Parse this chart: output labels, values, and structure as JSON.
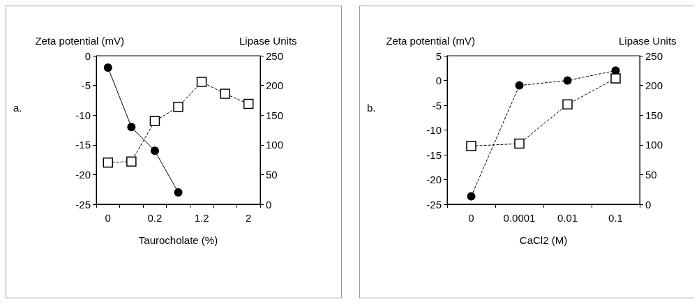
{
  "chart_data": [
    {
      "type": "line",
      "ylabel": "Zeta potential (mV)",
      "y2label": "Lipase Units",
      "xlabel": "Taurocholate (%)",
      "annotations": [
        "a."
      ],
      "categories": [
        "0",
        null,
        "0.2",
        null,
        "1.2",
        null,
        "2"
      ],
      "series": [
        {
          "color": "#000000",
          "marker": "circle",
          "line_style": "solid",
          "values": [
            -2,
            -12,
            -16,
            -23,
            null,
            null,
            null
          ]
        },
        {
          "color": "#000000",
          "marker": "square",
          "line_style": "dashed",
          "axis": "y2",
          "values": [
            70,
            72,
            140,
            164,
            206,
            186,
            169
          ]
        }
      ],
      "ylim": [
        -25,
        0
      ],
      "yticks": [
        -25,
        -20,
        -15,
        -10,
        -5,
        0
      ],
      "y2lim": [
        0,
        250
      ],
      "y2ticks": [
        0,
        50,
        100,
        150,
        200,
        250
      ],
      "grid": false
    },
    {
      "type": "line",
      "ylabel": "Zeta potential (mV)",
      "y2label": "Lipase Units",
      "xlabel": "CaCl2 (M)",
      "annotations": [
        "b."
      ],
      "categories": [
        "0",
        "0.0001",
        "0.01",
        "0.1"
      ],
      "series": [
        {
          "color": "#000000",
          "marker": "circle",
          "line_style": "dashed",
          "values": [
            -23.4,
            -1,
            0,
            2
          ]
        },
        {
          "color": "#000000",
          "marker": "square",
          "line_style": "dashed",
          "axis": "y2",
          "values": [
            98,
            102,
            168,
            212
          ]
        }
      ],
      "ylim": [
        -25,
        5
      ],
      "yticks": [
        -25,
        -20,
        -15,
        -10,
        -5,
        0,
        5
      ],
      "y2lim": [
        0,
        250
      ],
      "y2ticks": [
        0,
        50,
        100,
        150,
        200,
        250
      ],
      "grid": false
    }
  ]
}
